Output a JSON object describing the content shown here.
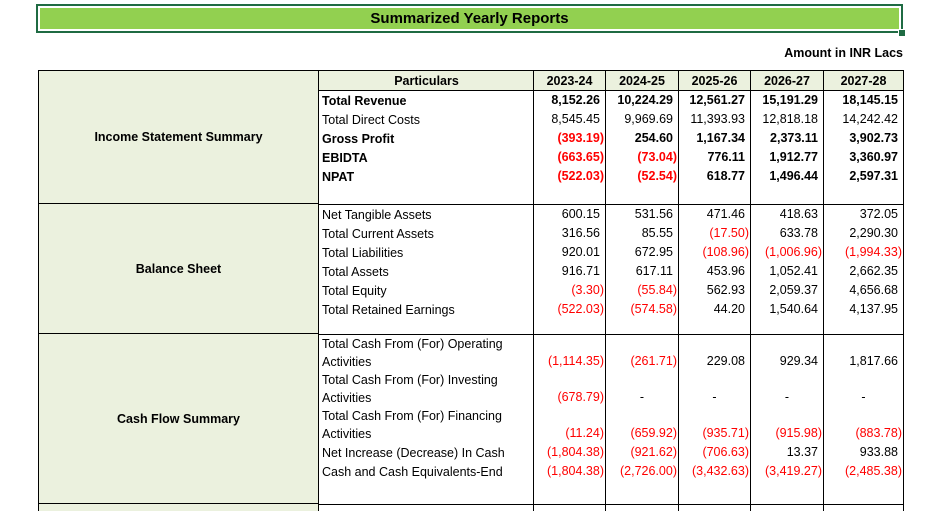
{
  "page": {
    "title": "Summarized Yearly Reports",
    "unit_note": "Amount in INR Lacs"
  },
  "colors": {
    "title_fill_green": "#92D050",
    "title_border_green": "#1F6B43",
    "header_light_green": "#EBF1DE",
    "negative_red": "#FF0000"
  },
  "table": {
    "particulars_header": "Particulars",
    "years": [
      "2023-24",
      "2024-25",
      "2025-26",
      "2026-27",
      "2027-28"
    ],
    "sections": [
      {
        "name": "Income Statement Summary",
        "rows": [
          {
            "label": "Total Revenue",
            "bold": true,
            "values": [
              "8,152.26",
              "10,224.29",
              "12,561.27",
              "15,191.29",
              "18,145.15"
            ]
          },
          {
            "label": "Total Direct Costs",
            "bold": false,
            "values": [
              "8,545.45",
              "9,969.69",
              "11,393.93",
              "12,818.18",
              "14,242.42"
            ]
          },
          {
            "label": "Gross Profit",
            "bold": true,
            "values": [
              "(393.19)",
              "254.60",
              "1,167.34",
              "2,373.11",
              "3,902.73"
            ]
          },
          {
            "label": "EBIDTA",
            "bold": true,
            "values": [
              "(663.65)",
              "(73.04)",
              "776.11",
              "1,912.77",
              "3,360.97"
            ]
          },
          {
            "label": "NPAT",
            "bold": true,
            "values": [
              "(522.03)",
              "(52.54)",
              "618.77",
              "1,496.44",
              "2,597.31"
            ]
          }
        ]
      },
      {
        "name": "Balance Sheet",
        "rows": [
          {
            "label": "Net Tangible Assets",
            "bold": false,
            "values": [
              "600.15",
              "531.56",
              "471.46",
              "418.63",
              "372.05"
            ]
          },
          {
            "label": "Total Current Assets",
            "bold": false,
            "values": [
              "316.56",
              "85.55",
              "(17.50)",
              "633.78",
              "2,290.30"
            ]
          },
          {
            "label": "Total Liabilities",
            "bold": false,
            "values": [
              "920.01",
              "672.95",
              "(108.96)",
              "(1,006.96)",
              "(1,994.33)"
            ]
          },
          {
            "label": "Total Assets",
            "bold": false,
            "values": [
              "916.71",
              "617.11",
              "453.96",
              "1,052.41",
              "2,662.35"
            ]
          },
          {
            "label": "Total Equity",
            "bold": false,
            "values": [
              "(3.30)",
              "(55.84)",
              "562.93",
              "2,059.37",
              "4,656.68"
            ]
          },
          {
            "label": "Total Retained Earnings",
            "bold": false,
            "values": [
              "(522.03)",
              "(574.58)",
              "44.20",
              "1,540.64",
              "4,137.95"
            ]
          }
        ]
      },
      {
        "name": "Cash Flow Summary",
        "rows": [
          {
            "label": "Total Cash From (For) Operating Activities",
            "bold": false,
            "values": [
              "(1,114.35)",
              "(261.71)",
              "229.08",
              "929.34",
              "1,817.66"
            ]
          },
          {
            "label": "Total Cash From (For) Investing Activities",
            "bold": false,
            "values": [
              "(678.79)",
              "-",
              "-",
              "-",
              "-"
            ]
          },
          {
            "label": "Total Cash From (For) Financing Activities",
            "bold": false,
            "values": [
              "(11.24)",
              "(659.92)",
              "(935.71)",
              "(915.98)",
              "(883.78)"
            ]
          },
          {
            "label": "Net Increase (Decrease) In Cash",
            "bold": false,
            "values": [
              "(1,804.38)",
              "(921.62)",
              "(706.63)",
              "13.37",
              "933.88"
            ]
          },
          {
            "label": "Cash and Cash Equivalents-End",
            "bold": false,
            "values": [
              "(1,804.38)",
              "(2,726.00)",
              "(3,432.63)",
              "(3,419.27)",
              "(2,485.38)"
            ]
          }
        ]
      }
    ]
  }
}
